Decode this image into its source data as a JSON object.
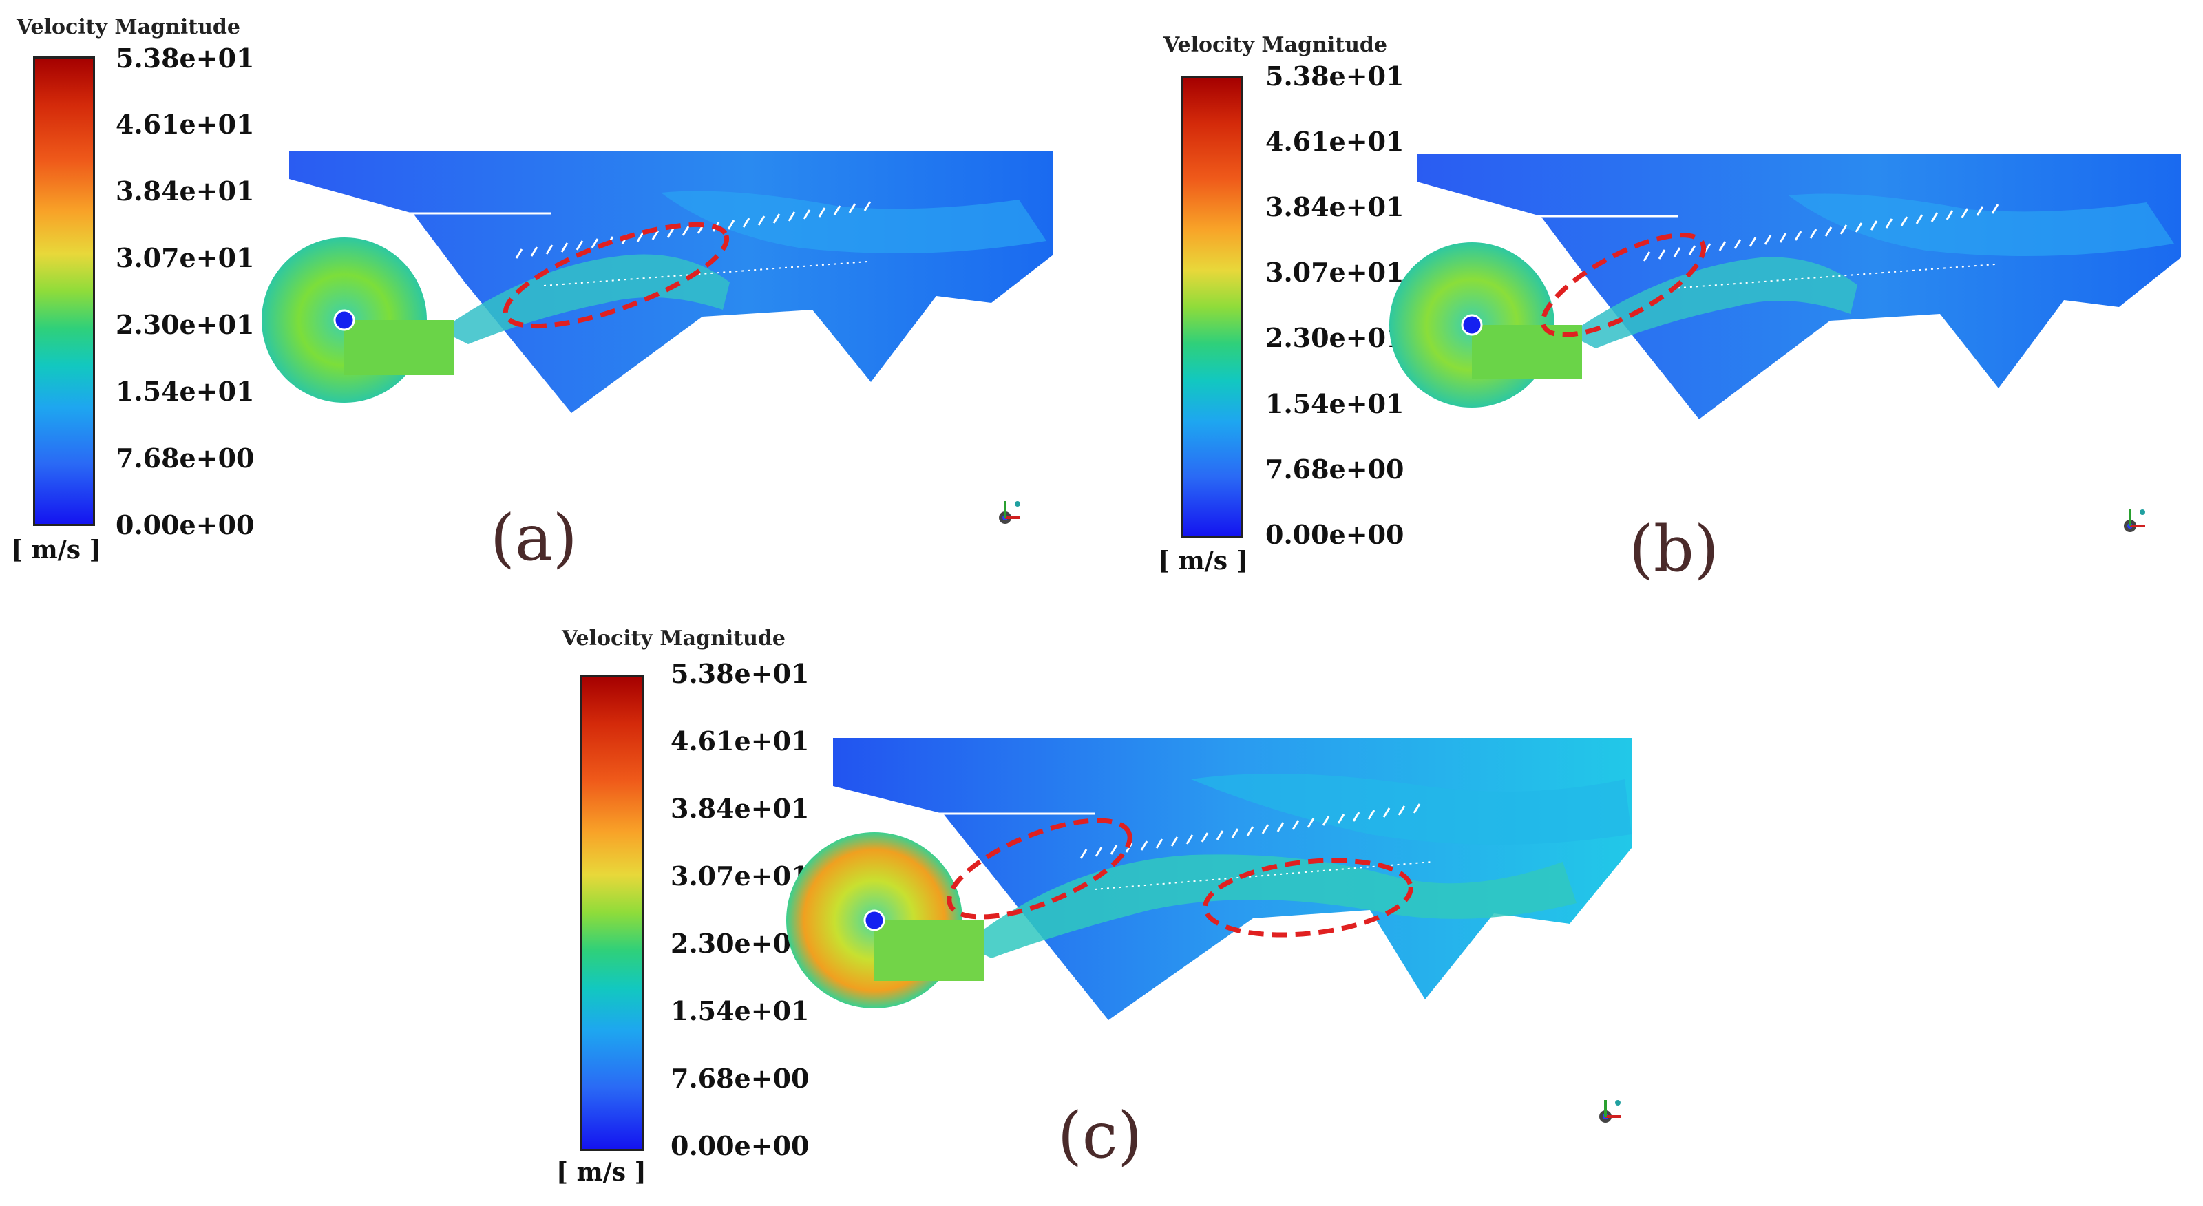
{
  "colorbar": {
    "title": "Velocity Magnitude",
    "ticks": [
      "5.38e+01",
      "4.61e+01",
      "3.84e+01",
      "3.07e+01",
      "2.30e+01",
      "1.54e+01",
      "7.68e+00",
      "0.00e+00"
    ],
    "unit": "[ m/s ]",
    "range": [
      0,
      53.8
    ],
    "colors": [
      "#a50000",
      "#d42a0a",
      "#ef5a1a",
      "#f8a328",
      "#e8d83a",
      "#8fdc3a",
      "#2fd07a",
      "#12c8c0",
      "#1ea6f0",
      "#2a6af5",
      "#1414f0"
    ]
  },
  "panels": [
    {
      "label": "(a)"
    },
    {
      "label": "(b)"
    },
    {
      "label": "(c)"
    }
  ],
  "highlight_color": "#e02020",
  "axis_triad_icon": "axis-triad-icon"
}
